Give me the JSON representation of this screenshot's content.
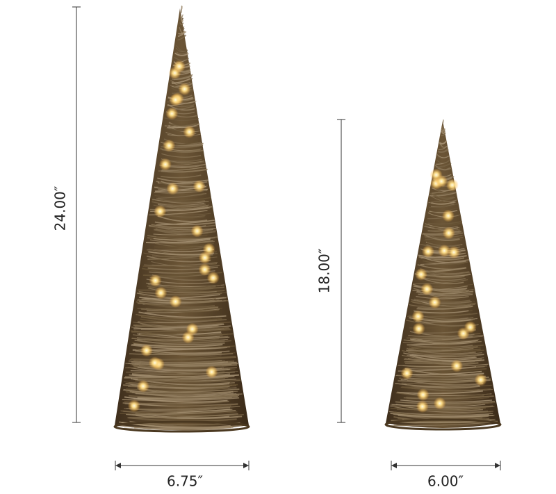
{
  "products": [
    {
      "height_label": "24.00″",
      "width_label": "6.75″"
    },
    {
      "height_label": "18.00″",
      "width_label": "6.00″"
    }
  ]
}
